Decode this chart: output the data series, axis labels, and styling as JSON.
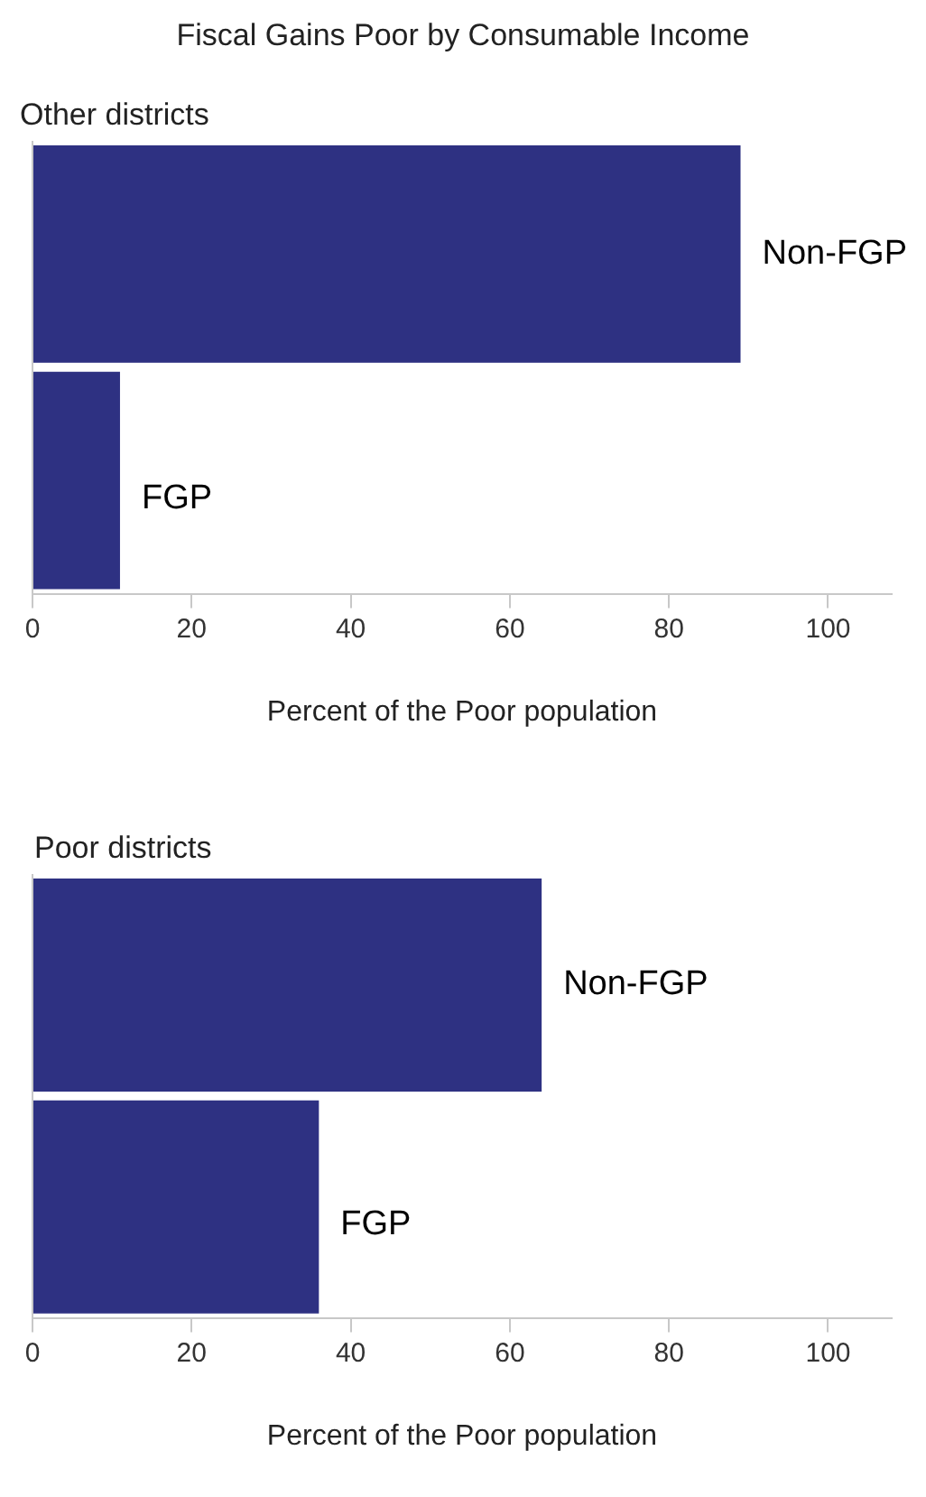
{
  "chart_data": [
    {
      "type": "bar",
      "orientation": "horizontal",
      "title": "Fiscal Gains Poor by Consumable Income",
      "subtitle": "Other districts",
      "xlabel": "Percent of the Poor population",
      "categories": [
        "Non-FGP",
        "FGP"
      ],
      "values": [
        89,
        11
      ],
      "color": "#2e3182",
      "xlim": [
        0,
        108
      ],
      "xticks": [
        0,
        20,
        40,
        60,
        80,
        100
      ],
      "grid": false,
      "tick_labels": "x"
    },
    {
      "type": "bar",
      "orientation": "horizontal",
      "subtitle": "Poor districts",
      "xlabel": "Percent of the Poor population",
      "categories": [
        "Non-FGP",
        "FGP"
      ],
      "values": [
        64,
        36
      ],
      "color": "#2e3182",
      "xlim": [
        0,
        108
      ],
      "xticks": [
        0,
        20,
        40,
        60,
        80,
        100
      ],
      "grid": false,
      "tick_labels": "x"
    }
  ]
}
